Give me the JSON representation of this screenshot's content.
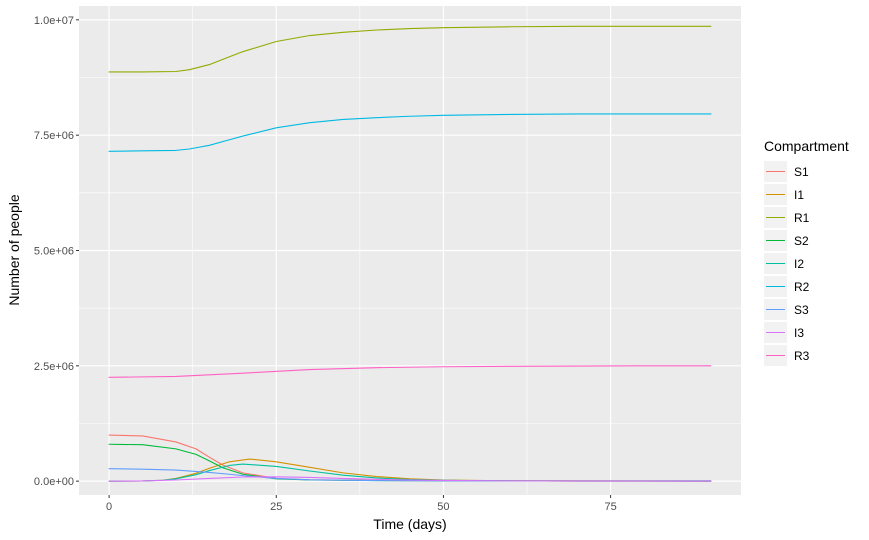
{
  "chart_data": {
    "type": "line",
    "xlabel": "Time (days)",
    "ylabel": "Number of people",
    "xlim": [
      -4.5,
      94.5
    ],
    "ylim": [
      -300000,
      10300000
    ],
    "x_ticks": [
      {
        "value": 0,
        "label": "0"
      },
      {
        "value": 25,
        "label": "25"
      },
      {
        "value": 50,
        "label": "50"
      },
      {
        "value": 75,
        "label": "75"
      }
    ],
    "y_ticks": [
      {
        "value": 0,
        "label": "0.0e+00"
      },
      {
        "value": 2500000,
        "label": "2.5e+06"
      },
      {
        "value": 5000000,
        "label": "5.0e+06"
      },
      {
        "value": 7500000,
        "label": "7.5e+06"
      },
      {
        "value": 10000000,
        "label": "1.0e+07"
      }
    ],
    "grid": true,
    "legend_position": "right",
    "legend_title": "Compartment",
    "series": [
      {
        "name": "S1",
        "color": "#F8766D",
        "x": [
          0,
          5,
          10,
          13,
          15,
          17,
          20,
          25,
          30,
          40,
          50,
          60,
          70,
          80,
          90
        ],
        "y": [
          1000000,
          980000,
          850000,
          700000,
          520000,
          350000,
          180000,
          60000,
          30000,
          15000,
          10000,
          8000,
          7000,
          6000,
          6000
        ]
      },
      {
        "name": "I1",
        "color": "#D39200",
        "x": [
          0,
          5,
          8,
          10,
          13,
          15,
          18,
          21,
          25,
          30,
          35,
          40,
          45,
          50,
          60,
          70,
          80,
          90
        ],
        "y": [
          0,
          5000,
          20000,
          60000,
          170000,
          280000,
          420000,
          480000,
          420000,
          300000,
          180000,
          100000,
          50000,
          25000,
          8000,
          3000,
          1000,
          500
        ]
      },
      {
        "name": "R1",
        "color": "#93AA00",
        "x": [
          0,
          5,
          10,
          12,
          15,
          18,
          20,
          25,
          30,
          35,
          40,
          45,
          50,
          60,
          70,
          80,
          90
        ],
        "y": [
          8870000,
          8870000,
          8880000,
          8920000,
          9030000,
          9200000,
          9310000,
          9530000,
          9660000,
          9730000,
          9780000,
          9810000,
          9830000,
          9850000,
          9860000,
          9860000,
          9860000
        ]
      },
      {
        "name": "S2",
        "color": "#00BA38",
        "x": [
          0,
          5,
          10,
          13,
          15,
          17,
          20,
          25,
          30,
          40,
          50,
          60,
          70,
          80,
          90
        ],
        "y": [
          800000,
          790000,
          700000,
          580000,
          440000,
          290000,
          150000,
          50000,
          25000,
          12000,
          8000,
          6000,
          5000,
          5000,
          5000
        ]
      },
      {
        "name": "I2",
        "color": "#00C19F",
        "x": [
          0,
          5,
          8,
          10,
          13,
          15,
          18,
          20,
          25,
          30,
          35,
          40,
          45,
          50,
          60,
          70,
          80,
          90
        ],
        "y": [
          0,
          5000,
          20000,
          50000,
          140000,
          230000,
          340000,
          370000,
          320000,
          220000,
          130000,
          70000,
          35000,
          18000,
          6000,
          2000,
          1000,
          500
        ]
      },
      {
        "name": "R2",
        "color": "#00B9E3",
        "x": [
          0,
          5,
          10,
          12,
          15,
          18,
          20,
          25,
          30,
          35,
          40,
          45,
          50,
          60,
          70,
          80,
          90
        ],
        "y": [
          7150000,
          7160000,
          7170000,
          7200000,
          7280000,
          7400000,
          7480000,
          7660000,
          7770000,
          7840000,
          7880000,
          7910000,
          7930000,
          7950000,
          7960000,
          7960000,
          7960000
        ]
      },
      {
        "name": "S3",
        "color": "#619CFF",
        "x": [
          0,
          5,
          10,
          15,
          18,
          20,
          25,
          30,
          40,
          50,
          60,
          70,
          80,
          90
        ],
        "y": [
          270000,
          260000,
          240000,
          190000,
          150000,
          120000,
          60000,
          30000,
          12000,
          8000,
          6000,
          5000,
          5000,
          5000
        ]
      },
      {
        "name": "I3",
        "color": "#DB72FB",
        "x": [
          0,
          5,
          10,
          15,
          20,
          25,
          30,
          35,
          40,
          45,
          50,
          60,
          70,
          80,
          90
        ],
        "y": [
          0,
          4000,
          25000,
          60000,
          90000,
          95000,
          80000,
          60000,
          40000,
          25000,
          15000,
          6000,
          2000,
          1000,
          500
        ]
      },
      {
        "name": "R3",
        "color": "#FF61C3",
        "x": [
          0,
          10,
          20,
          30,
          40,
          50,
          60,
          70,
          80,
          90
        ],
        "y": [
          2250000,
          2270000,
          2340000,
          2420000,
          2460000,
          2480000,
          2490000,
          2495000,
          2500000,
          2500000
        ]
      }
    ]
  }
}
